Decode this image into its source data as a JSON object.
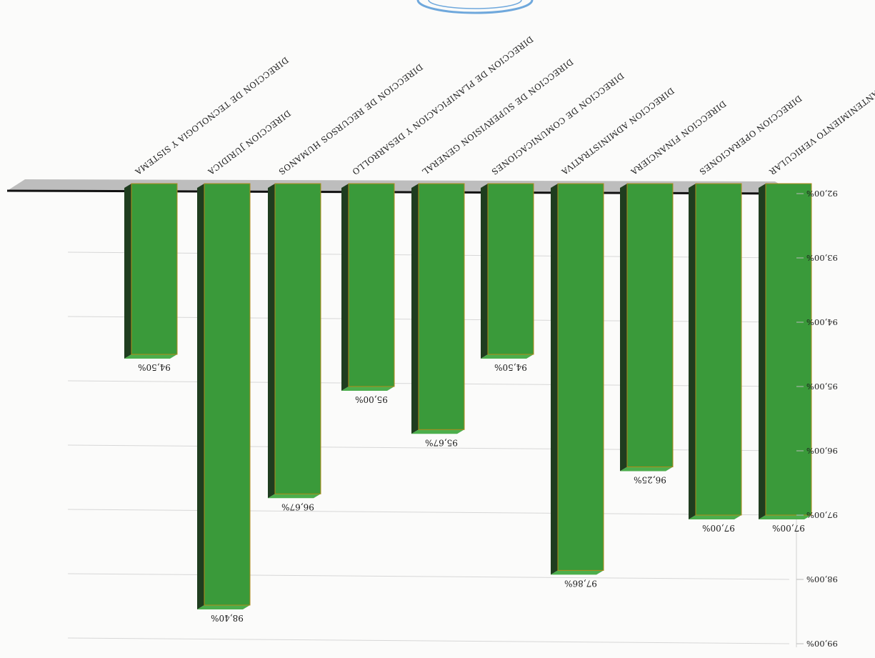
{
  "chart_data": {
    "type": "bar",
    "orientation": "rotated-180",
    "categories": [
      "DIRECCION DE MANTENIMIENTO VEHICULAR",
      "DIRECCION OPERACIONES",
      "DIRECCION FINANCIERA",
      "DIRECCION ADMINISTRATIVA",
      "DIRECCION DE COMUNICACIONES",
      "DIRECCION DE SUPERVISION GENERAL",
      "DIRECCION DE PLANIFICACION Y DESARROLLO",
      "DIRECCION DE RECURSOS HUMANOS",
      "DIRECCION JURIDICA",
      "DIRECCION DE TECNOLOGIA Y SISTEMA"
    ],
    "values": [
      97.0,
      97.0,
      96.25,
      97.86,
      94.5,
      95.67,
      95.0,
      96.67,
      98.4,
      94.5
    ],
    "value_labels": [
      "97,00%",
      "97,00%",
      "96,25%",
      "97,86%",
      "94,50%",
      "95,67%",
      "95,00%",
      "96,67%",
      "98,40%",
      "94,50%"
    ],
    "ticks": [
      92,
      93,
      94,
      95,
      96,
      97,
      98,
      99
    ],
    "tick_labels": [
      "92,00%",
      "93,00%",
      "94,00%",
      "95,00%",
      "96,00%",
      "97,00%",
      "98,00%",
      "99,00%"
    ],
    "ylim": [
      92,
      99
    ],
    "grid": true,
    "legend": "none",
    "bar_color": "#3a9a3a",
    "bar_side_color": "#1f3d1f",
    "bar_edge_color": "#b08a1a",
    "floor_color": "#bdbdbd",
    "baseline_color": "#111111",
    "stamp_color": "#6fa8dc"
  }
}
